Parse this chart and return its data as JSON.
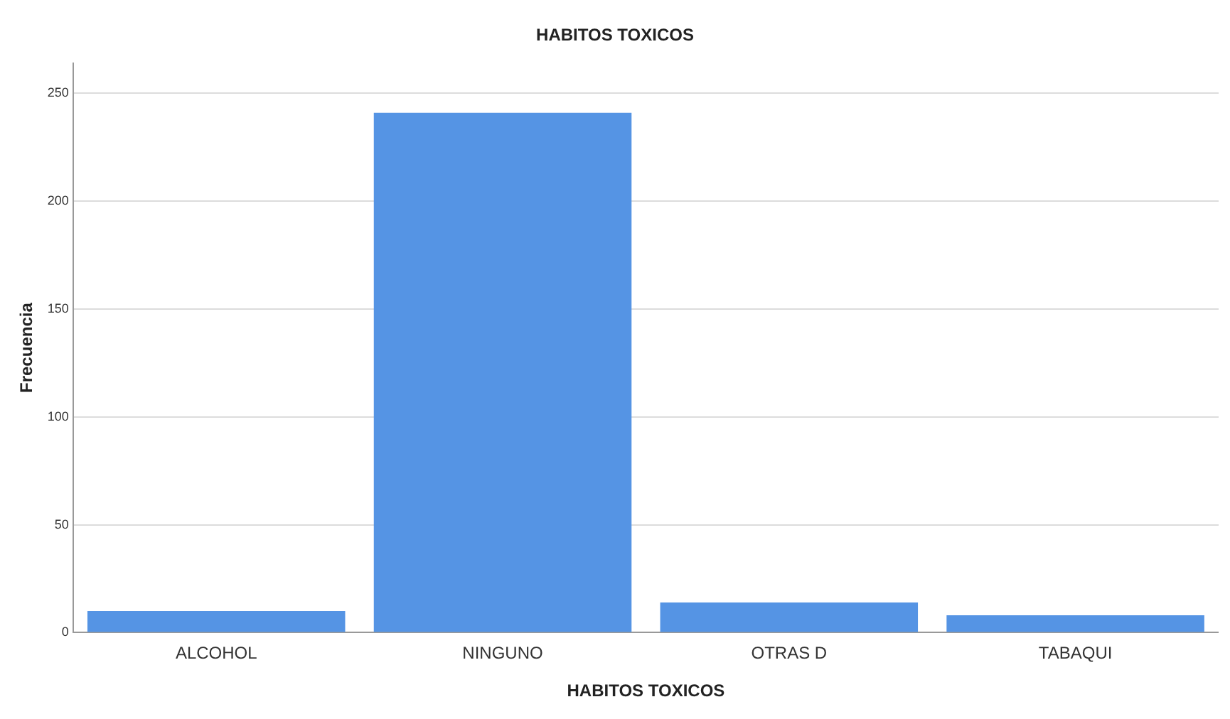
{
  "chart_data": {
    "type": "bar",
    "title": "HABITOS TOXICOS",
    "xlabel": "HABITOS TOXICOS",
    "ylabel": "Frecuencia",
    "categories": [
      "ALCOHOL",
      "NINGUNO",
      "OTRAS D",
      "TABAQUI"
    ],
    "values": [
      10,
      241,
      14,
      8
    ],
    "color": "#5594e4",
    "ylim": [
      0,
      264
    ],
    "yticks": [
      0,
      50,
      100,
      150,
      200,
      250
    ],
    "grid": "y",
    "legend": false
  }
}
